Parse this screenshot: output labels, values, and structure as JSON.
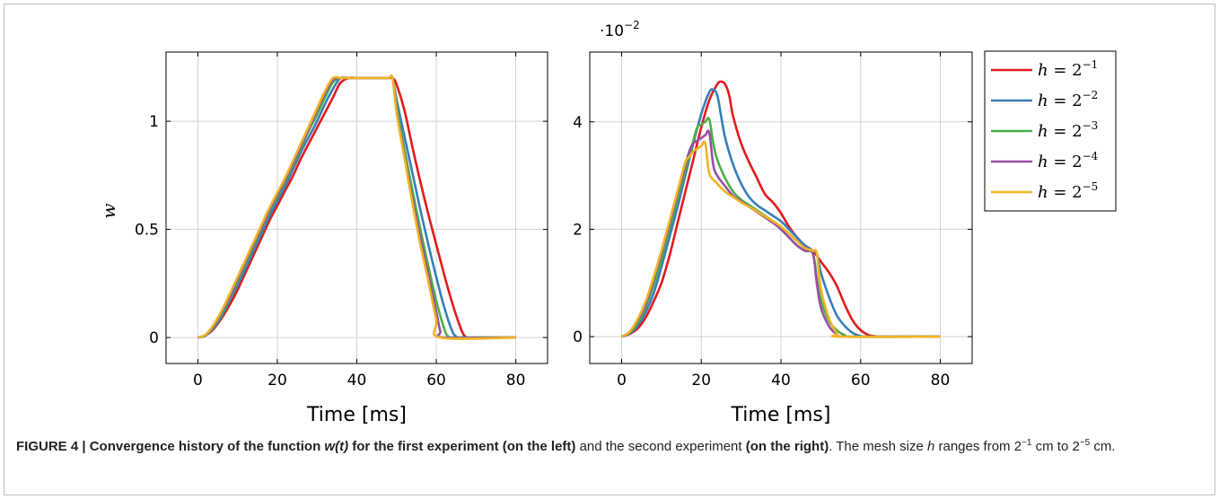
{
  "figure": {
    "caption": {
      "label": "FIGURE 4 | ",
      "bold_part1": "Convergence history of the function ",
      "bold_func": "w(t)",
      "bold_part2": " for the first experiment (on the left)",
      "normal1": "  and the second experiment ",
      "bold_part3": "(on the right)",
      "normal2": ". The mesh size ",
      "var_h": "h",
      "normal3": " ranges from 2",
      "exp1": "−1",
      "normal4": " cm to 2",
      "exp2": "−5",
      "normal5": " cm."
    }
  },
  "chart_data": [
    {
      "type": "line",
      "title": "",
      "xlabel": "Time [ms]",
      "ylabel": "w",
      "xlim": [
        -8,
        88
      ],
      "ylim": [
        -0.12,
        1.32
      ],
      "xticks": [
        0,
        20,
        40,
        60,
        80
      ],
      "xtick_labels": [
        "0",
        "20",
        "40",
        "60",
        "80"
      ],
      "yticks": [
        0,
        0.5,
        1
      ],
      "ytick_labels": [
        "0",
        "0.5",
        "1"
      ],
      "grid": true,
      "series": [
        {
          "name": "h = 2^-1",
          "color": "#e41a1c",
          "x": [
            0,
            2,
            4,
            6,
            8,
            10,
            12,
            14,
            16,
            18,
            20,
            22,
            24,
            26,
            28,
            30,
            32,
            34,
            35,
            36,
            38,
            40,
            42,
            44,
            46,
            48,
            49,
            50,
            52,
            54,
            56,
            58,
            60,
            62,
            64,
            66,
            67,
            68,
            70,
            80
          ],
          "y": [
            0,
            0.01,
            0.04,
            0.09,
            0.15,
            0.22,
            0.3,
            0.38,
            0.46,
            0.54,
            0.61,
            0.68,
            0.75,
            0.83,
            0.9,
            0.97,
            1.04,
            1.11,
            1.15,
            1.18,
            1.2,
            1.2,
            1.2,
            1.2,
            1.2,
            1.2,
            1.2,
            1.17,
            1.05,
            0.88,
            0.72,
            0.57,
            0.43,
            0.29,
            0.16,
            0.05,
            0.01,
            0,
            0,
            0
          ]
        },
        {
          "name": "h = 2^-2",
          "color": "#377eb8",
          "x": [
            0,
            2,
            4,
            6,
            8,
            10,
            12,
            14,
            16,
            18,
            20,
            22,
            24,
            26,
            28,
            30,
            32,
            34,
            35,
            36,
            38,
            40,
            42,
            44,
            46,
            48,
            49,
            50,
            52,
            54,
            56,
            58,
            60,
            62,
            64,
            65,
            66,
            80
          ],
          "y": [
            0,
            0.01,
            0.045,
            0.1,
            0.17,
            0.24,
            0.32,
            0.4,
            0.48,
            0.56,
            0.63,
            0.7,
            0.78,
            0.86,
            0.93,
            1.0,
            1.08,
            1.15,
            1.18,
            1.2,
            1.2,
            1.2,
            1.2,
            1.2,
            1.2,
            1.2,
            1.2,
            1.1,
            0.93,
            0.76,
            0.59,
            0.43,
            0.28,
            0.14,
            0.03,
            0.005,
            0,
            0
          ]
        },
        {
          "name": "h = 2^-3",
          "color": "#4daf4a",
          "x": [
            0,
            2,
            4,
            6,
            8,
            10,
            12,
            14,
            16,
            18,
            20,
            22,
            24,
            26,
            28,
            30,
            32,
            34,
            36,
            38,
            40,
            42,
            44,
            46,
            48,
            49,
            50,
            52,
            54,
            56,
            58,
            60,
            62,
            63,
            64,
            80
          ],
          "y": [
            0,
            0.012,
            0.05,
            0.11,
            0.18,
            0.26,
            0.34,
            0.42,
            0.5,
            0.58,
            0.65,
            0.72,
            0.8,
            0.88,
            0.96,
            1.03,
            1.11,
            1.18,
            1.2,
            1.2,
            1.2,
            1.2,
            1.2,
            1.2,
            1.2,
            1.2,
            1.07,
            0.87,
            0.68,
            0.5,
            0.33,
            0.17,
            0.04,
            0.005,
            0,
            0
          ]
        },
        {
          "name": "h = 2^-4",
          "color": "#984ea3",
          "x": [
            0,
            2,
            4,
            6,
            8,
            10,
            12,
            14,
            16,
            18,
            20,
            22,
            24,
            26,
            28,
            30,
            32,
            34,
            36,
            38,
            40,
            42,
            44,
            46,
            48,
            49,
            50,
            52,
            54,
            56,
            58,
            60,
            61,
            62,
            80
          ],
          "y": [
            0,
            0.013,
            0.055,
            0.12,
            0.19,
            0.27,
            0.35,
            0.43,
            0.51,
            0.59,
            0.66,
            0.73,
            0.81,
            0.89,
            0.97,
            1.05,
            1.13,
            1.19,
            1.2,
            1.2,
            1.2,
            1.2,
            1.2,
            1.2,
            1.2,
            1.2,
            1.05,
            0.84,
            0.64,
            0.46,
            0.29,
            0.12,
            0.03,
            0,
            0
          ]
        },
        {
          "name": "h = 2^-5",
          "color": "#f0b323",
          "x": [
            0,
            2,
            4,
            6,
            8,
            10,
            12,
            14,
            16,
            18,
            20,
            22,
            24,
            26,
            28,
            30,
            32,
            34,
            36,
            38,
            40,
            42,
            44,
            46,
            48,
            49,
            50,
            52,
            54,
            56,
            58,
            60,
            61,
            80
          ],
          "y": [
            0,
            0.014,
            0.06,
            0.125,
            0.2,
            0.28,
            0.36,
            0.44,
            0.52,
            0.6,
            0.67,
            0.74,
            0.82,
            0.9,
            0.98,
            1.06,
            1.14,
            1.2,
            1.2,
            1.2,
            1.2,
            1.2,
            1.2,
            1.2,
            1.2,
            1.2,
            1.04,
            0.83,
            0.62,
            0.43,
            0.26,
            0.08,
            0,
            0
          ]
        }
      ]
    },
    {
      "type": "line",
      "title": "",
      "xlabel": "Time [ms]",
      "ylabel": "",
      "scale_label": "·10",
      "scale_exponent": "−2",
      "xlim": [
        -8,
        88
      ],
      "ylim": [
        -0.5,
        5.3
      ],
      "xticks": [
        0,
        20,
        40,
        60,
        80
      ],
      "xtick_labels": [
        "0",
        "20",
        "40",
        "60",
        "80"
      ],
      "yticks": [
        0,
        2,
        4
      ],
      "ytick_labels": [
        "0",
        "2",
        "4"
      ],
      "grid": true,
      "legend": {
        "position": "outside-right",
        "entries": [
          {
            "var": "h",
            "eq": " = 2",
            "exp": "−1",
            "color": "#e41a1c"
          },
          {
            "var": "h",
            "eq": " = 2",
            "exp": "−2",
            "color": "#377eb8"
          },
          {
            "var": "h",
            "eq": " = 2",
            "exp": "−3",
            "color": "#4daf4a"
          },
          {
            "var": "h",
            "eq": " = 2",
            "exp": "−4",
            "color": "#984ea3"
          },
          {
            "var": "h",
            "eq": " = 2",
            "exp": "−5",
            "color": "#f0b323"
          }
        ]
      },
      "series": [
        {
          "name": "h = 2^-1",
          "color": "#e41a1c",
          "x": [
            0,
            2,
            4,
            6,
            8,
            10,
            12,
            14,
            16,
            18,
            20,
            22,
            24,
            25,
            26,
            27,
            28,
            30,
            32,
            34,
            36,
            38,
            40,
            42,
            44,
            46,
            48,
            50,
            52,
            54,
            56,
            58,
            60,
            62,
            64,
            66,
            80
          ],
          "y": [
            0,
            0.05,
            0.15,
            0.35,
            0.65,
            1.0,
            1.5,
            2.1,
            2.7,
            3.3,
            3.9,
            4.4,
            4.7,
            4.75,
            4.7,
            4.5,
            4.1,
            3.6,
            3.25,
            2.95,
            2.65,
            2.5,
            2.3,
            2.05,
            1.85,
            1.7,
            1.6,
            1.4,
            1.2,
            0.95,
            0.6,
            0.3,
            0.12,
            0.03,
            0.005,
            0,
            0
          ]
        },
        {
          "name": "h = 2^-2",
          "color": "#377eb8",
          "x": [
            0,
            2,
            4,
            6,
            8,
            10,
            12,
            14,
            16,
            18,
            20,
            22,
            23,
            24,
            25,
            26,
            28,
            30,
            32,
            34,
            36,
            38,
            40,
            42,
            44,
            46,
            48,
            49,
            50,
            52,
            54,
            56,
            58,
            60,
            62,
            80
          ],
          "y": [
            0,
            0.06,
            0.2,
            0.45,
            0.8,
            1.3,
            1.85,
            2.4,
            3.0,
            3.6,
            4.15,
            4.55,
            4.6,
            4.5,
            4.1,
            3.7,
            3.2,
            2.85,
            2.6,
            2.45,
            2.35,
            2.25,
            2.15,
            2.0,
            1.85,
            1.7,
            1.6,
            1.55,
            1.2,
            0.75,
            0.4,
            0.2,
            0.07,
            0.01,
            0,
            0
          ]
        },
        {
          "name": "h = 2^-3",
          "color": "#4daf4a",
          "x": [
            0,
            2,
            4,
            6,
            8,
            10,
            12,
            14,
            16,
            18,
            19,
            20,
            21,
            22,
            23,
            24,
            26,
            28,
            30,
            32,
            34,
            36,
            38,
            40,
            42,
            44,
            46,
            48,
            49,
            50,
            52,
            54,
            56,
            58,
            80
          ],
          "y": [
            0,
            0.07,
            0.25,
            0.55,
            0.95,
            1.45,
            2.0,
            2.55,
            3.1,
            3.65,
            3.9,
            3.95,
            4.0,
            4.05,
            3.6,
            3.3,
            2.95,
            2.7,
            2.55,
            2.45,
            2.35,
            2.25,
            2.15,
            2.0,
            1.85,
            1.7,
            1.6,
            1.55,
            1.1,
            0.7,
            0.3,
            0.12,
            0.03,
            0,
            0
          ]
        },
        {
          "name": "h = 2^-4",
          "color": "#984ea3",
          "x": [
            0,
            2,
            4,
            6,
            8,
            10,
            12,
            14,
            16,
            17,
            18,
            19,
            20,
            21,
            22,
            23,
            24,
            26,
            28,
            30,
            32,
            34,
            36,
            38,
            40,
            42,
            44,
            46,
            48,
            49,
            50,
            52,
            54,
            56,
            80
          ],
          "y": [
            0,
            0.08,
            0.3,
            0.6,
            1.05,
            1.55,
            2.1,
            2.65,
            3.2,
            3.45,
            3.6,
            3.65,
            3.7,
            3.75,
            3.8,
            3.2,
            3.0,
            2.8,
            2.62,
            2.52,
            2.42,
            2.32,
            2.22,
            2.12,
            2.0,
            1.85,
            1.7,
            1.6,
            1.55,
            1.0,
            0.55,
            0.2,
            0.05,
            0,
            0
          ]
        },
        {
          "name": "h = 2^-5",
          "color": "#f0b323",
          "x": [
            0,
            2,
            4,
            6,
            8,
            10,
            12,
            14,
            16,
            17,
            18,
            19,
            20,
            21,
            22,
            24,
            26,
            28,
            30,
            32,
            34,
            36,
            38,
            40,
            42,
            44,
            46,
            48,
            49,
            50,
            52,
            54,
            55,
            80
          ],
          "y": [
            0,
            0.09,
            0.32,
            0.65,
            1.1,
            1.6,
            2.15,
            2.7,
            3.25,
            3.35,
            3.45,
            3.5,
            3.55,
            3.6,
            3.05,
            2.85,
            2.7,
            2.6,
            2.5,
            2.42,
            2.33,
            2.24,
            2.15,
            2.05,
            1.92,
            1.78,
            1.65,
            1.6,
            1.55,
            0.9,
            0.35,
            0.06,
            0,
            0
          ]
        }
      ]
    }
  ]
}
